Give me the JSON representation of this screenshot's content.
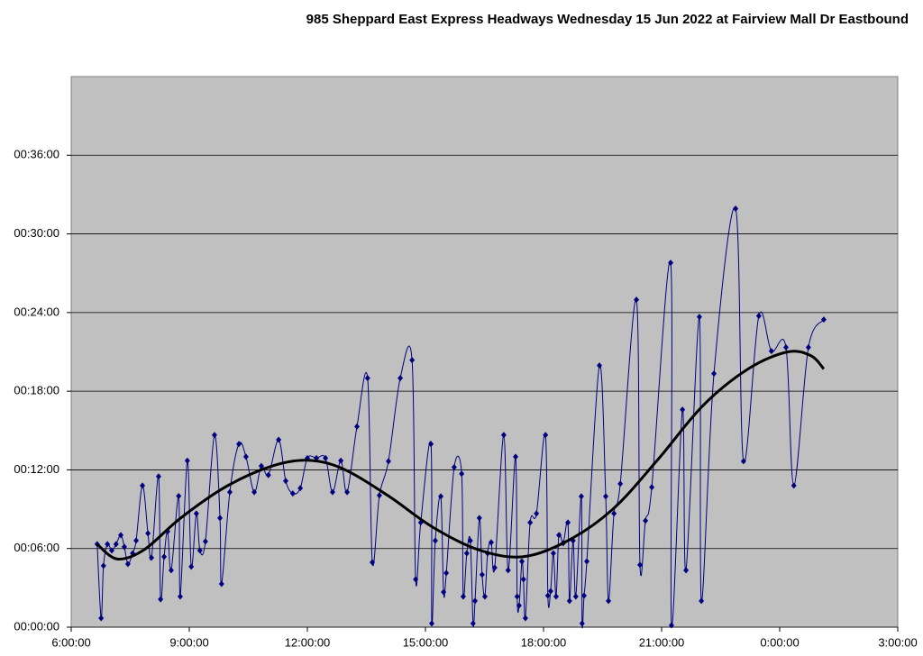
{
  "chart_data": {
    "type": "line",
    "title": "985 Sheppard East Express Headways Wednesday 15 Jun 2022 at Fairview Mall Dr Eastbound",
    "xlim": [
      6,
      27
    ],
    "xticks": [
      {
        "value": 6,
        "label": "6:00:00"
      },
      {
        "value": 9,
        "label": "9:00:00"
      },
      {
        "value": 12,
        "label": "12:00:00"
      },
      {
        "value": 15,
        "label": "15:00:00"
      },
      {
        "value": 18,
        "label": "18:00:00"
      },
      {
        "value": 21,
        "label": "21:00:00"
      },
      {
        "value": 24,
        "label": "0:00:00"
      },
      {
        "value": 27,
        "label": "3:00:00"
      }
    ],
    "ylim": [
      0,
      42
    ],
    "yticks": [
      {
        "value": 0,
        "label": "00:00:00"
      },
      {
        "value": 6,
        "label": "00:06:00"
      },
      {
        "value": 12,
        "label": "00:12:00"
      },
      {
        "value": 18,
        "label": "00:18:00"
      },
      {
        "value": 24,
        "label": "00:24:00"
      },
      {
        "value": 30,
        "label": "00:30:00"
      },
      {
        "value": 36,
        "label": "00:36:00"
      }
    ],
    "grid": true,
    "series": [
      {
        "color": "#000080",
        "smooth": true,
        "markers": true,
        "x": [
          6.66,
          6.76,
          6.82,
          6.92,
          7.03,
          7.14,
          7.26,
          7.35,
          7.44,
          7.56,
          7.65,
          7.81,
          7.95,
          8.04,
          8.22,
          8.27,
          8.36,
          8.45,
          8.54,
          8.73,
          8.77,
          8.95,
          9.05,
          9.18,
          9.27,
          9.41,
          9.64,
          9.78,
          9.82,
          10.03,
          10.26,
          10.44,
          10.65,
          10.83,
          11.01,
          11.27,
          11.45,
          11.63,
          11.82,
          12.0,
          12.23,
          12.46,
          12.64,
          12.85,
          13.01,
          13.26,
          13.53,
          13.65,
          13.83,
          14.06,
          14.36,
          14.66,
          14.75,
          14.88,
          15.14,
          15.16,
          15.25,
          15.39,
          15.46,
          15.53,
          15.73,
          15.92,
          15.96,
          16.05,
          16.14,
          16.21,
          16.26,
          16.37,
          16.44,
          16.51,
          16.58,
          16.67,
          16.76,
          16.99,
          17.1,
          17.29,
          17.33,
          17.38,
          17.45,
          17.49,
          17.54,
          17.66,
          17.82,
          18.05,
          18.11,
          18.18,
          18.25,
          18.32,
          18.39,
          18.5,
          18.62,
          18.66,
          18.75,
          18.82,
          18.96,
          18.98,
          19.03,
          19.1,
          19.42,
          19.58,
          19.65,
          19.79,
          19.95,
          20.36,
          20.45,
          20.59,
          20.75,
          21.23,
          21.25,
          21.53,
          21.62,
          21.96,
          22.01,
          22.33,
          22.88,
          23.08,
          23.47,
          23.79,
          24.16,
          24.36,
          24.73,
          25.12
        ],
        "values": [
          6.33,
          0.69,
          4.68,
          6.33,
          5.85,
          6.33,
          7.02,
          6.13,
          4.82,
          5.64,
          6.61,
          10.8,
          7.16,
          5.3,
          11.5,
          2.13,
          5.37,
          7.3,
          4.34,
          10.0,
          2.34,
          12.7,
          4.61,
          8.67,
          5.85,
          6.54,
          14.66,
          8.33,
          3.3,
          10.3,
          13.97,
          13.0,
          10.3,
          12.3,
          11.6,
          14.3,
          11.15,
          10.2,
          10.6,
          12.9,
          12.9,
          12.9,
          10.3,
          12.7,
          10.3,
          15.3,
          19.0,
          4.95,
          10.05,
          12.66,
          19.0,
          20.37,
          3.65,
          7.98,
          13.97,
          0.28,
          6.6,
          9.98,
          2.68,
          4.13,
          12.2,
          11.7,
          2.34,
          5.64,
          6.6,
          0.28,
          2.0,
          8.33,
          4.0,
          2.34,
          5.64,
          6.47,
          4.54,
          14.66,
          4.34,
          13.0,
          2.34,
          1.65,
          5.02,
          3.65,
          0.69,
          7.98,
          8.67,
          14.66,
          2.41,
          2.75,
          5.64,
          2.34,
          7.02,
          6.4,
          7.98,
          2.0,
          6.6,
          2.34,
          9.98,
          0.28,
          2.41,
          5.02,
          19.96,
          9.98,
          2.0,
          8.67,
          10.94,
          24.98,
          4.75,
          8.12,
          10.67,
          27.8,
          0.14,
          16.59,
          4.34,
          23.67,
          2.0,
          19.34,
          31.93,
          12.66,
          23.74,
          21.06,
          21.34,
          10.8,
          21.34,
          23.47
        ]
      },
      {
        "color": "#000000",
        "smooth": true,
        "markers": false,
        "x": [
          6.66,
          7.17,
          7.85,
          8.77,
          9.92,
          11.06,
          11.98,
          12.89,
          14.04,
          15.18,
          16.33,
          17.47,
          18.62,
          19.76,
          20.91,
          22.05,
          23.2,
          24.2,
          24.8,
          25.12
        ],
        "values": [
          6.33,
          5.2,
          5.9,
          8.3,
          10.7,
          12.25,
          12.73,
          12.1,
          10.05,
          7.64,
          5.92,
          5.37,
          6.6,
          9.0,
          12.8,
          16.9,
          19.7,
          21.0,
          20.7,
          19.7
        ]
      }
    ]
  }
}
